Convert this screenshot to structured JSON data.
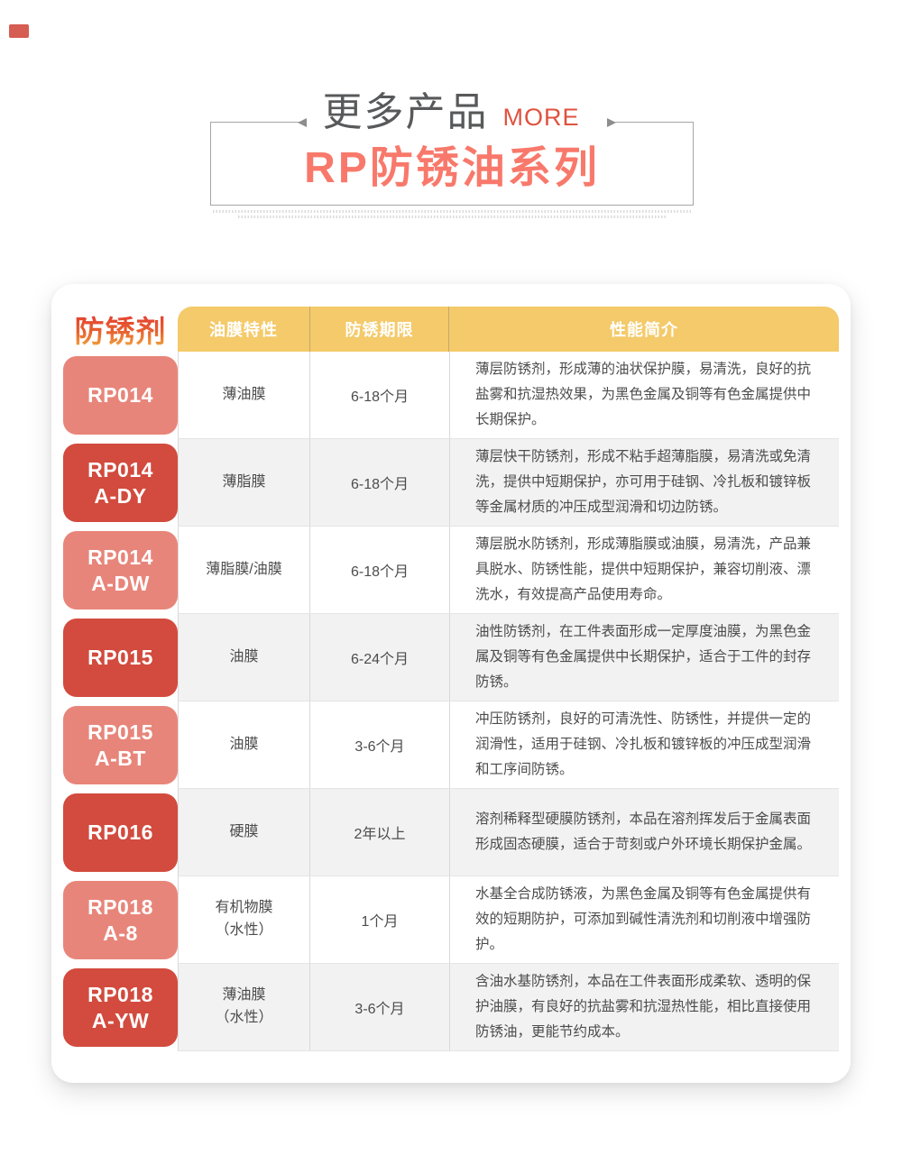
{
  "page": {
    "section_label_cn": "更多产品",
    "section_label_en": "MORE",
    "series_title": "RP防锈油系列"
  },
  "table": {
    "corner_label": "防锈剂",
    "columns": [
      "油膜特性",
      "防锈期限",
      "性能简介"
    ],
    "rows": [
      {
        "model": "RP014",
        "film": "薄油膜",
        "period": "6-18个月",
        "desc": "薄层防锈剂，形成薄的油状保护膜，易清洗，良好的抗盐雾和抗湿热效果，为黑色金属及铜等有色金属提供中长期保护。"
      },
      {
        "model": "RP014\nA-DY",
        "film": "薄脂膜",
        "period": "6-18个月",
        "desc": "薄层快干防锈剂，形成不粘手超薄脂膜，易清洗或免清洗，提供中短期保护，亦可用于硅钢、冷扎板和镀锌板等金属材质的冲压成型润滑和切边防锈。"
      },
      {
        "model": "RP014\nA-DW",
        "film": "薄脂膜/油膜",
        "period": "6-18个月",
        "desc": "薄层脱水防锈剂，形成薄脂膜或油膜，易清洗，产品兼具脱水、防锈性能，提供中短期保护，兼容切削液、漂洗水，有效提高产品使用寿命。"
      },
      {
        "model": "RP015",
        "film": "油膜",
        "period": "6-24个月",
        "desc": "油性防锈剂，在工件表面形成一定厚度油膜，为黑色金属及铜等有色金属提供中长期保护，适合于工件的封存防锈。"
      },
      {
        "model": "RP015\nA-BT",
        "film": "油膜",
        "period": "3-6个月",
        "desc": "冲压防锈剂，良好的可清洗性、防锈性，并提供一定的润滑性，适用于硅钢、冷扎板和镀锌板的冲压成型润滑和工序间防锈。"
      },
      {
        "model": "RP016",
        "film": "硬膜",
        "period": "2年以上",
        "desc": "溶剂稀释型硬膜防锈剂，本品在溶剂挥发后于金属表面形成固态硬膜，适合于苛刻或户外环境长期保护金属。"
      },
      {
        "model": "RP018\nA-8",
        "film": "有机物膜\n（水性）",
        "period": "1个月",
        "desc": "水基全合成防锈液，为黑色金属及铜等有色金属提供有效的短期防护，可添加到碱性清洗剂和切削液中增强防护。"
      },
      {
        "model": "RP018\nA-YW",
        "film": "薄油膜\n（水性）",
        "period": "3-6个月",
        "desc": "含油水基防锈剂，本品在工件表面形成柔软、透明的保护油膜，有良好的抗盐雾和抗湿热性能，相比直接使用防锈油，更能节约成本。"
      }
    ]
  },
  "colors": {
    "more_red": "#e0523f",
    "series_pink": "#f8796b",
    "header_yellow": "#f4ca6a",
    "label_light": "#e8857a",
    "label_dark": "#d24b3e"
  }
}
